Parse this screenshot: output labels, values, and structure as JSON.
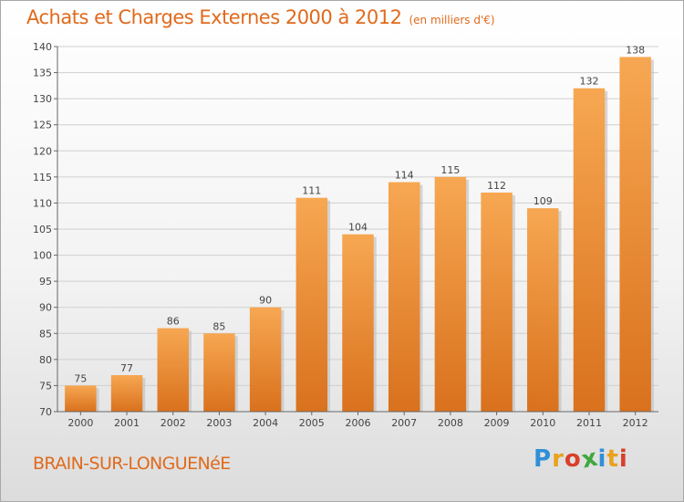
{
  "header": {
    "title": "Achats et Charges Externes 2000 à 2012",
    "subtitle": "(en milliers d'€)"
  },
  "footer": {
    "commune": "BRAIN-SUR-LONGUENéE",
    "logo_letters": [
      "P",
      "r",
      "o",
      "x",
      "i",
      "t",
      "i"
    ],
    "logo_colors": [
      "#2f8fd8",
      "#e8a21c",
      "#d8402a",
      "#3da83c",
      "#2f8fd8",
      "#e8a21c",
      "#d8402a"
    ]
  },
  "colors": {
    "bar_light": "#f7a752",
    "bar_dark": "#d9711d",
    "accent": "#e06a1c"
  },
  "chart_data": {
    "type": "bar",
    "categories": [
      "2000",
      "2001",
      "2002",
      "2003",
      "2004",
      "2005",
      "2006",
      "2007",
      "2008",
      "2009",
      "2010",
      "2011",
      "2012"
    ],
    "values": [
      75,
      77,
      86,
      85,
      90,
      111,
      104,
      114,
      115,
      112,
      109,
      132,
      138
    ],
    "title": "Achats et Charges Externes 2000 à 2012",
    "subtitle": "(en milliers d'€)",
    "xlabel": "",
    "ylabel": "",
    "ylim": [
      70,
      140
    ],
    "yticks": [
      70,
      75,
      80,
      85,
      90,
      95,
      100,
      105,
      110,
      115,
      120,
      125,
      130,
      135,
      140
    ],
    "grid": true,
    "legend": "none"
  }
}
